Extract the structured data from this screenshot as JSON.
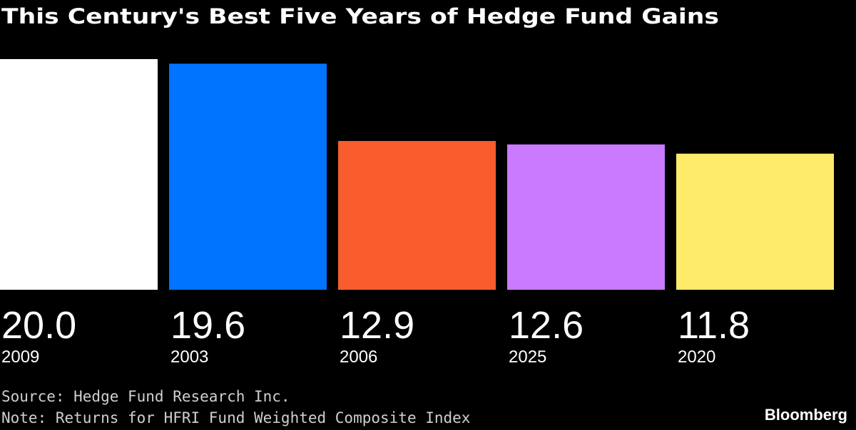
{
  "chart_data": {
    "type": "bar",
    "title": "This Century's Best Five Years of Hedge Fund Gains",
    "categories": [
      "2009",
      "2003",
      "2006",
      "2025",
      "2020"
    ],
    "values": [
      20,
      19.6,
      12.9,
      12.6,
      11.8
    ],
    "value_labels": [
      "20.0",
      "19.6",
      "12.9",
      "12.6",
      "11.8"
    ],
    "colors": [
      "#ffffff",
      "#0073ff",
      "#f95d2d",
      "#c97aff",
      "#ffeb6a"
    ],
    "source": "Source: Hedge Fund Research Inc.",
    "note": "Note: Returns for HFRI Fund Weighted Composite Index",
    "credit": "Bloomberg"
  }
}
